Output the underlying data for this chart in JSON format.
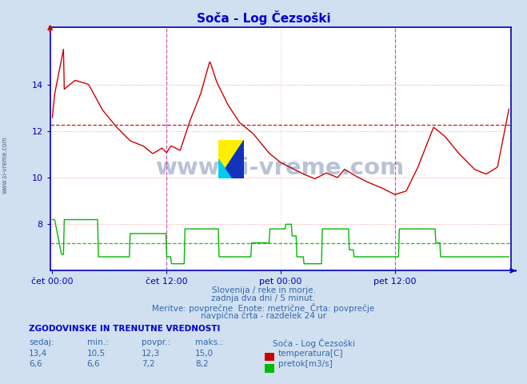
{
  "title": "Soča - Log Čezsoški",
  "title_color": "#0000cc",
  "bg_color": "#d0e0f0",
  "plot_bg_color": "#ffffff",
  "grid_color": "#ffaaaa",
  "axis_color": "#0000bb",
  "tick_label_color": "#0000bb",
  "xlabel_labels": [
    "čet 00:00",
    "čet 12:00",
    "pet 00:00",
    "pet 12:00"
  ],
  "ylim": [
    6.0,
    16.5
  ],
  "yticks": [
    8,
    10,
    12,
    14
  ],
  "avg_temp": 12.3,
  "avg_flow": 7.2,
  "temp_color": "#cc0000",
  "flow_color": "#00bb00",
  "vline_color": "#cc44cc",
  "vline_positions": [
    0.5,
    1.5
  ],
  "watermark": "www.si-vreme.com",
  "subtitle1": "Slovenija / reke in morje.",
  "subtitle2": "zadnja dva dni / 5 minut.",
  "subtitle3": "Meritve: povprečne  Enote: metrične  Črta: povprečje",
  "subtitle4": "navpična črta - razdelek 24 ur",
  "table_title": "ZGODOVINSKE IN TRENUTNE VREDNOSTI",
  "col_headers": [
    "sedaj:",
    "min.:",
    "povpr.:",
    "maks.:"
  ],
  "temp_row": [
    "13,4",
    "10,5",
    "12,3",
    "15,0"
  ],
  "flow_row": [
    "6,6",
    "6,6",
    "7,2",
    "8,2"
  ],
  "legend_title": "Soča - Log Čezsoški",
  "legend_temp": "temperatura[C]",
  "legend_flow": "pretok[m3/s]"
}
